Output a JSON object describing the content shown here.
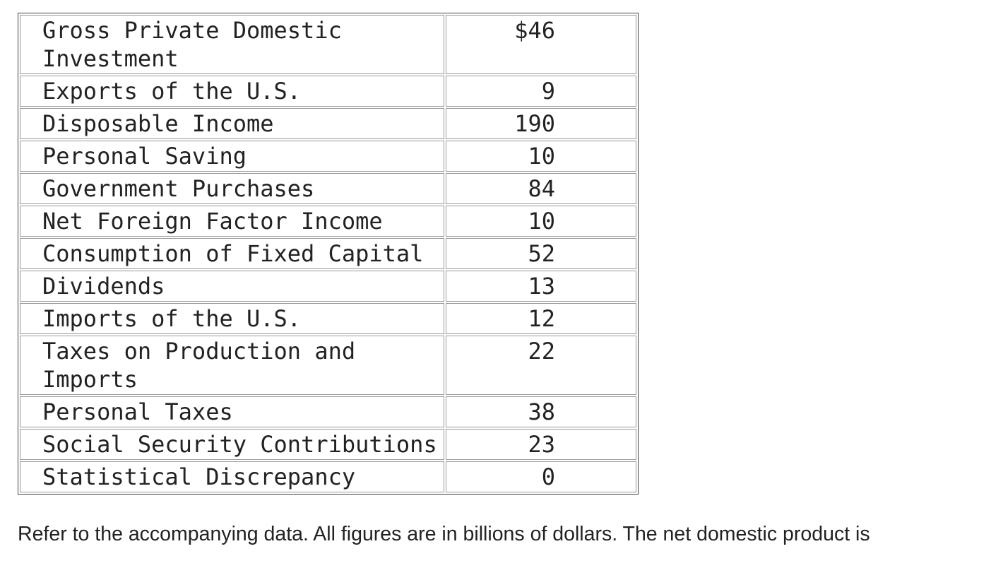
{
  "table": {
    "rows": [
      [
        "Gross Private Domestic Investment",
        "$46"
      ],
      [
        "Exports of the U.S.",
        "9"
      ],
      [
        "Disposable Income",
        "190"
      ],
      [
        "Personal Saving",
        "10"
      ],
      [
        "Government Purchases",
        "84"
      ],
      [
        "Net Foreign Factor Income",
        "10"
      ],
      [
        "Consumption of Fixed Capital",
        "52"
      ],
      [
        "Dividends",
        "13"
      ],
      [
        "Imports of the U.S.",
        "12"
      ],
      [
        "Taxes on Production and Imports",
        "22"
      ],
      [
        "Personal Taxes",
        "38"
      ],
      [
        "Social Security Contributions",
        "23"
      ],
      [
        "Statistical Discrepancy",
        "0"
      ]
    ]
  },
  "question": "Refer to the accompanying data. All figures are in billions of dollars. The net domestic product is"
}
